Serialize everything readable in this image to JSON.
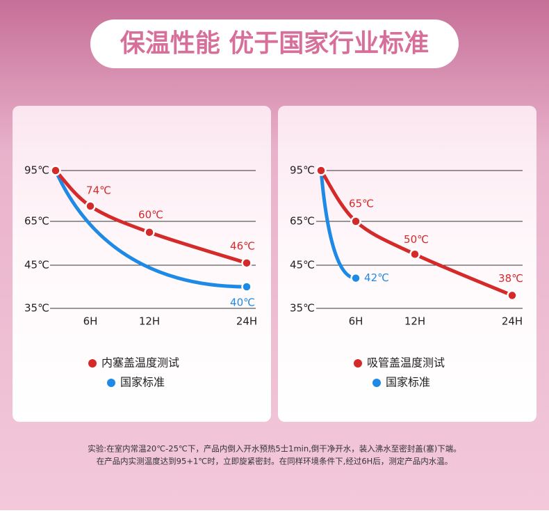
{
  "header": {
    "title": "保温性能 优于国家行业标准"
  },
  "chart_data": [
    {
      "type": "line",
      "categories": [
        null,
        "6H",
        "12H",
        "24H"
      ],
      "series": [
        {
          "name": "内塞盖温度测试",
          "color": "#d42a2a",
          "values": [
            95,
            74,
            60,
            46
          ],
          "value_labels": [
            null,
            "74℃",
            "60℃",
            "46℃"
          ]
        },
        {
          "name": "国家标准",
          "color": "#1f8ae6",
          "values": [
            95,
            null,
            null,
            40
          ],
          "value_labels": [
            null,
            null,
            null,
            "40℃"
          ]
        }
      ],
      "ylim": [
        35,
        95
      ],
      "yticks": [
        {
          "value": 95,
          "label": "95℃"
        },
        {
          "value": 65,
          "label": "65℃"
        },
        {
          "value": 45,
          "label": "45℃"
        },
        {
          "value": 35,
          "label": "35℃"
        }
      ],
      "grid": true
    },
    {
      "type": "line",
      "categories": [
        null,
        "6H",
        "12H",
        "24H"
      ],
      "series": [
        {
          "name": "吸管盖温度测试",
          "color": "#d42a2a",
          "values": [
            95,
            65,
            50,
            38
          ],
          "value_labels": [
            null,
            "65℃",
            "50℃",
            "38℃"
          ]
        },
        {
          "name": "国家标准",
          "color": "#1f8ae6",
          "values": [
            95,
            42,
            null,
            null
          ],
          "value_labels": [
            null,
            "42℃",
            null,
            null
          ]
        }
      ],
      "ylim": [
        35,
        95
      ],
      "yticks": [
        {
          "value": 95,
          "label": "95℃"
        },
        {
          "value": 65,
          "label": "65℃"
        },
        {
          "value": 45,
          "label": "45℃"
        },
        {
          "value": 35,
          "label": "35℃"
        }
      ],
      "grid": true
    }
  ],
  "footnote": [
    "实验:在室内常温20℃-25℃下，产品内倒入开水预热5士1min,倒干净开水，装入沸水至密封盖(塞)下端。",
    "在产品内实测温度达到95+1℃时，立即旋紧密封。在同样环境条件下,经过6H后，测定产品内水温。"
  ]
}
